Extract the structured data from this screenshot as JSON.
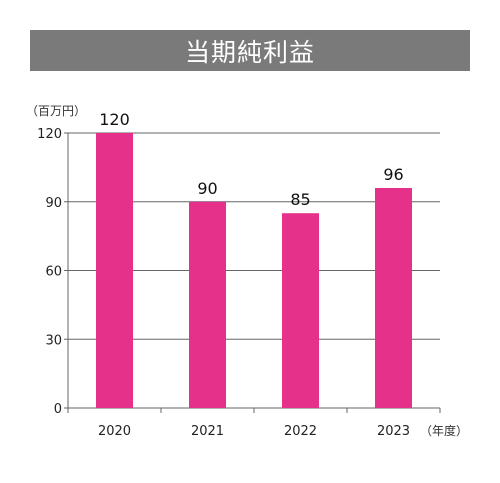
{
  "title": "当期純利益",
  "chart_data": {
    "type": "bar",
    "title": "当期純利益",
    "ylabel": "（百万円）",
    "xlabel": "（年度）",
    "categories": [
      "2020",
      "2021",
      "2022",
      "2023"
    ],
    "values": [
      120,
      90,
      85,
      96
    ],
    "value_labels": [
      "120",
      "90",
      "85",
      "96"
    ],
    "ylim": [
      0,
      120
    ],
    "yticks": [
      "0",
      "30",
      "60",
      "90",
      "120"
    ],
    "ytick_values": [
      0,
      30,
      60,
      90,
      120
    ],
    "grid": true,
    "bar_color": "#e5318a",
    "title_bar_color": "#7a7a7a"
  }
}
